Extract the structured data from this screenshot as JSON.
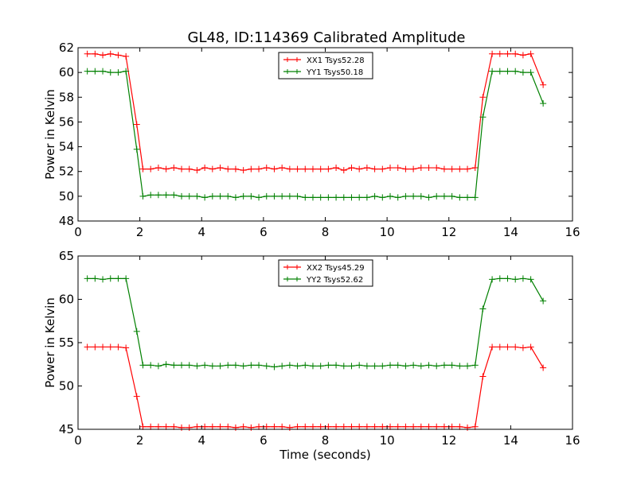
{
  "title": "GL48, ID:114369 Calibrated Amplitude",
  "colors": {
    "XX": "#ff0000",
    "YY": "#008000"
  },
  "chart_data": [
    {
      "type": "line",
      "xlabel": "",
      "ylabel": "Power in Kelvin",
      "xlim": [
        0,
        16
      ],
      "ylim": [
        48,
        62
      ],
      "xticks": [
        0,
        2,
        4,
        6,
        8,
        10,
        12,
        14,
        16
      ],
      "yticks": [
        48,
        50,
        52,
        54,
        56,
        58,
        60,
        62
      ],
      "legend": "top-center",
      "grid": false,
      "series": [
        {
          "name": "XX1 Tsys52.28",
          "color": "#ff0000",
          "x": [
            0.3,
            0.55,
            0.8,
            1.05,
            1.3,
            1.55,
            1.9,
            2.1,
            2.35,
            2.6,
            2.85,
            3.1,
            3.35,
            3.6,
            3.85,
            4.1,
            4.35,
            4.6,
            4.85,
            5.1,
            5.35,
            5.6,
            5.85,
            6.1,
            6.35,
            6.6,
            6.85,
            7.1,
            7.35,
            7.6,
            7.85,
            8.1,
            8.35,
            8.6,
            8.85,
            9.1,
            9.35,
            9.6,
            9.85,
            10.1,
            10.35,
            10.6,
            10.85,
            11.1,
            11.35,
            11.6,
            11.85,
            12.1,
            12.35,
            12.6,
            12.85,
            13.1,
            13.4,
            13.65,
            13.9,
            14.15,
            14.4,
            14.65,
            15.05
          ],
          "values": [
            61.5,
            61.5,
            61.4,
            61.5,
            61.4,
            61.3,
            55.8,
            52.2,
            52.2,
            52.3,
            52.2,
            52.3,
            52.2,
            52.2,
            52.1,
            52.3,
            52.2,
            52.3,
            52.2,
            52.2,
            52.1,
            52.2,
            52.2,
            52.3,
            52.2,
            52.3,
            52.2,
            52.2,
            52.2,
            52.2,
            52.2,
            52.2,
            52.3,
            52.1,
            52.3,
            52.2,
            52.3,
            52.2,
            52.2,
            52.3,
            52.3,
            52.2,
            52.2,
            52.3,
            52.3,
            52.3,
            52.2,
            52.2,
            52.2,
            52.2,
            52.3,
            58.0,
            61.5,
            61.5,
            61.5,
            61.5,
            61.4,
            61.5,
            59.0
          ]
        },
        {
          "name": "YY1 Tsys50.18",
          "color": "#008000",
          "x": [
            0.3,
            0.55,
            0.8,
            1.05,
            1.3,
            1.55,
            1.9,
            2.1,
            2.35,
            2.6,
            2.85,
            3.1,
            3.35,
            3.6,
            3.85,
            4.1,
            4.35,
            4.6,
            4.85,
            5.1,
            5.35,
            5.6,
            5.85,
            6.1,
            6.35,
            6.6,
            6.85,
            7.1,
            7.35,
            7.6,
            7.85,
            8.1,
            8.35,
            8.6,
            8.85,
            9.1,
            9.35,
            9.6,
            9.85,
            10.1,
            10.35,
            10.6,
            10.85,
            11.1,
            11.35,
            11.6,
            11.85,
            12.1,
            12.35,
            12.6,
            12.85,
            13.1,
            13.4,
            13.65,
            13.9,
            14.15,
            14.4,
            14.65,
            15.05
          ],
          "values": [
            60.1,
            60.1,
            60.1,
            60.0,
            60.0,
            60.1,
            53.8,
            50.0,
            50.1,
            50.1,
            50.1,
            50.1,
            50.0,
            50.0,
            50.0,
            49.9,
            50.0,
            50.0,
            50.0,
            49.9,
            50.0,
            50.0,
            49.9,
            50.0,
            50.0,
            50.0,
            50.0,
            50.0,
            49.9,
            49.9,
            49.9,
            49.9,
            49.9,
            49.9,
            49.9,
            49.9,
            49.9,
            50.0,
            49.9,
            50.0,
            49.9,
            50.0,
            50.0,
            50.0,
            49.9,
            50.0,
            50.0,
            50.0,
            49.9,
            49.9,
            49.9,
            56.4,
            60.1,
            60.1,
            60.1,
            60.1,
            60.0,
            60.0,
            57.5
          ]
        }
      ]
    },
    {
      "type": "line",
      "xlabel": "Time (seconds)",
      "ylabel": "Power in Kelvin",
      "xlim": [
        0,
        16
      ],
      "ylim": [
        45,
        65
      ],
      "xticks": [
        0,
        2,
        4,
        6,
        8,
        10,
        12,
        14,
        16
      ],
      "yticks": [
        45,
        50,
        55,
        60,
        65
      ],
      "legend": "top-center",
      "grid": false,
      "series": [
        {
          "name": "XX2 Tsys45.29",
          "color": "#ff0000",
          "x": [
            0.3,
            0.55,
            0.8,
            1.05,
            1.3,
            1.55,
            1.9,
            2.1,
            2.35,
            2.6,
            2.85,
            3.1,
            3.35,
            3.6,
            3.85,
            4.1,
            4.35,
            4.6,
            4.85,
            5.1,
            5.35,
            5.6,
            5.85,
            6.1,
            6.35,
            6.6,
            6.85,
            7.1,
            7.35,
            7.6,
            7.85,
            8.1,
            8.35,
            8.6,
            8.85,
            9.1,
            9.35,
            9.6,
            9.85,
            10.1,
            10.35,
            10.6,
            10.85,
            11.1,
            11.35,
            11.6,
            11.85,
            12.1,
            12.35,
            12.6,
            12.85,
            13.1,
            13.4,
            13.65,
            13.9,
            14.15,
            14.4,
            14.65,
            15.05
          ],
          "values": [
            54.5,
            54.5,
            54.5,
            54.5,
            54.5,
            54.4,
            48.8,
            45.3,
            45.3,
            45.3,
            45.3,
            45.3,
            45.2,
            45.2,
            45.3,
            45.3,
            45.3,
            45.3,
            45.3,
            45.2,
            45.3,
            45.2,
            45.3,
            45.3,
            45.3,
            45.3,
            45.2,
            45.3,
            45.3,
            45.3,
            45.3,
            45.3,
            45.3,
            45.3,
            45.3,
            45.3,
            45.3,
            45.3,
            45.3,
            45.3,
            45.3,
            45.3,
            45.3,
            45.3,
            45.3,
            45.3,
            45.3,
            45.3,
            45.3,
            45.2,
            45.3,
            51.1,
            54.5,
            54.5,
            54.5,
            54.5,
            54.4,
            54.5,
            52.1
          ]
        },
        {
          "name": "YY2 Tsys52.62",
          "color": "#008000",
          "x": [
            0.3,
            0.55,
            0.8,
            1.05,
            1.3,
            1.55,
            1.9,
            2.1,
            2.35,
            2.6,
            2.85,
            3.1,
            3.35,
            3.6,
            3.85,
            4.1,
            4.35,
            4.6,
            4.85,
            5.1,
            5.35,
            5.6,
            5.85,
            6.1,
            6.35,
            6.6,
            6.85,
            7.1,
            7.35,
            7.6,
            7.85,
            8.1,
            8.35,
            8.6,
            8.85,
            9.1,
            9.35,
            9.6,
            9.85,
            10.1,
            10.35,
            10.6,
            10.85,
            11.1,
            11.35,
            11.6,
            11.85,
            12.1,
            12.35,
            12.6,
            12.85,
            13.1,
            13.4,
            13.65,
            13.9,
            14.15,
            14.4,
            14.65,
            15.05
          ],
          "values": [
            62.4,
            62.4,
            62.3,
            62.4,
            62.4,
            62.4,
            56.3,
            52.4,
            52.4,
            52.3,
            52.5,
            52.4,
            52.4,
            52.4,
            52.3,
            52.4,
            52.3,
            52.3,
            52.4,
            52.4,
            52.3,
            52.4,
            52.4,
            52.3,
            52.2,
            52.3,
            52.4,
            52.3,
            52.4,
            52.3,
            52.3,
            52.4,
            52.4,
            52.3,
            52.3,
            52.4,
            52.3,
            52.3,
            52.3,
            52.4,
            52.4,
            52.3,
            52.4,
            52.3,
            52.4,
            52.3,
            52.4,
            52.4,
            52.3,
            52.3,
            52.4,
            58.9,
            62.3,
            62.4,
            62.4,
            62.3,
            62.4,
            62.3,
            59.8
          ]
        }
      ]
    }
  ]
}
